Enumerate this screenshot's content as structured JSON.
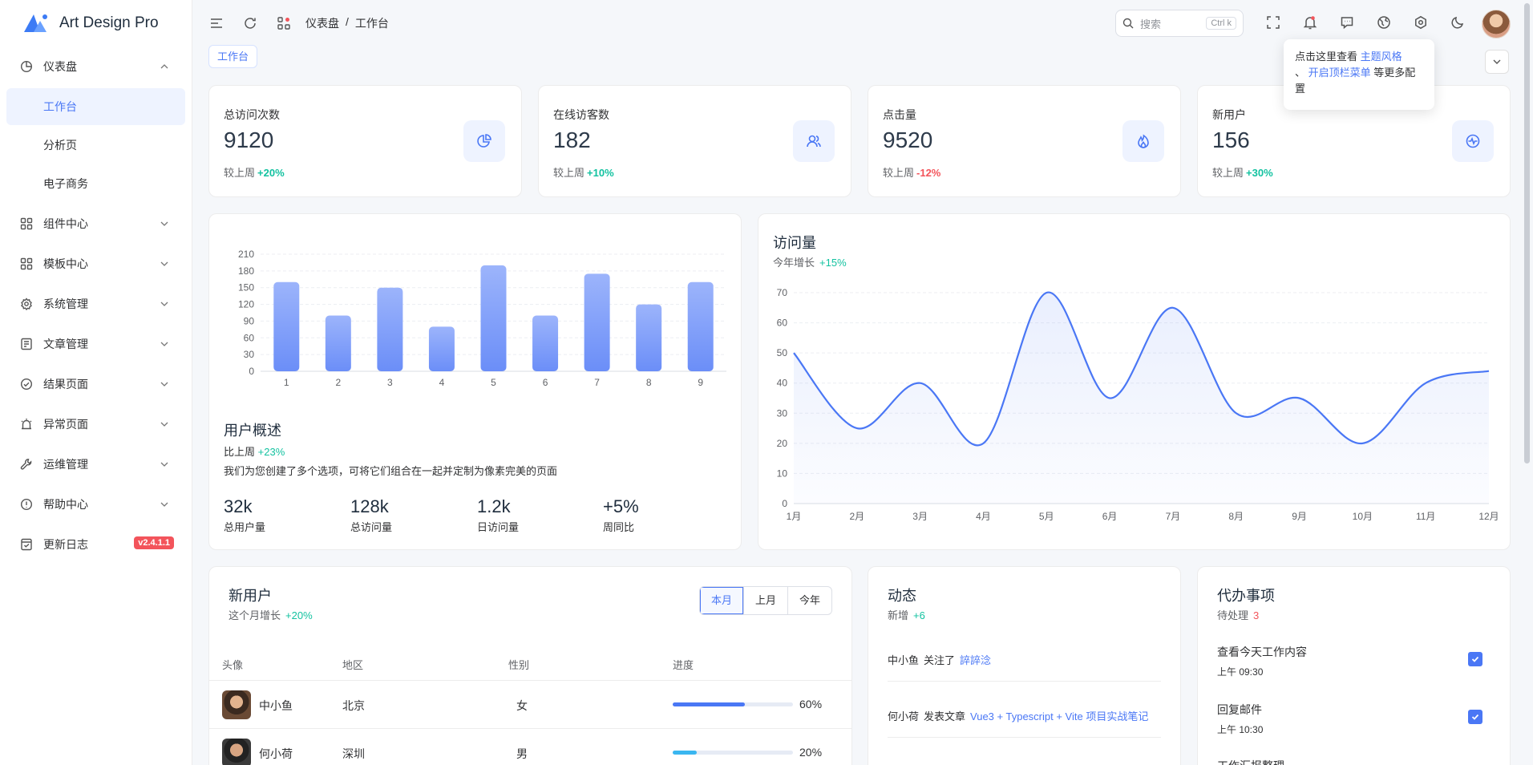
{
  "app": {
    "name": "Art Design Pro"
  },
  "sidebar": {
    "items": [
      {
        "label": "仪表盘",
        "icon": "dashboard-icon",
        "expanded": true,
        "children": [
          {
            "label": "工作台",
            "active": true
          },
          {
            "label": "分析页"
          },
          {
            "label": "电子商务"
          }
        ]
      },
      {
        "label": "组件中心",
        "icon": "components-icon"
      },
      {
        "label": "模板中心",
        "icon": "templates-icon"
      },
      {
        "label": "系统管理",
        "icon": "gear-icon"
      },
      {
        "label": "文章管理",
        "icon": "article-icon"
      },
      {
        "label": "结果页面",
        "icon": "check-circle-icon"
      },
      {
        "label": "异常页面",
        "icon": "alarm-icon"
      },
      {
        "label": "运维管理",
        "icon": "wrench-icon"
      },
      {
        "label": "帮助中心",
        "icon": "info-circle-icon"
      },
      {
        "label": "更新日志",
        "icon": "changelog-icon",
        "badge": "v2.4.1.1"
      }
    ]
  },
  "header": {
    "breadcrumb": [
      "仪表盘",
      "/",
      "工作台"
    ],
    "search_placeholder": "搜索",
    "search_shortcut": "Ctrl k"
  },
  "tabs": {
    "active": "工作台"
  },
  "tooltip": {
    "prefix": "点击这里查看",
    "link1": "主题风格",
    "sep": "、",
    "link2": "开启顶栏菜单",
    "suffix": "等更多配置"
  },
  "stats": [
    {
      "label": "总访问次数",
      "value": "9120",
      "compare": "较上周",
      "delta": "+20%",
      "trend": "up",
      "icon": "pie-chart-icon"
    },
    {
      "label": "在线访客数",
      "value": "182",
      "compare": "较上周",
      "delta": "+10%",
      "trend": "up",
      "icon": "users-icon"
    },
    {
      "label": "点击量",
      "value": "9520",
      "compare": "较上周",
      "delta": "-12%",
      "trend": "down",
      "icon": "fire-icon"
    },
    {
      "label": "新用户",
      "value": "156",
      "compare": "较上周",
      "delta": "+30%",
      "trend": "up",
      "icon": "pulse-icon"
    }
  ],
  "overview": {
    "title": "用户概述",
    "compare": "比上周",
    "delta": "+23%",
    "desc": "我们为您创建了多个选项，可将它们组合在一起并定制为像素完美的页面",
    "kpis": [
      {
        "value": "32k",
        "label": "总用户量"
      },
      {
        "value": "128k",
        "label": "总访问量"
      },
      {
        "value": "1.2k",
        "label": "日访问量"
      },
      {
        "value": "+5%",
        "label": "周同比"
      }
    ]
  },
  "visits": {
    "title": "访问量",
    "sub": "今年增长",
    "delta": "+15%"
  },
  "new_users": {
    "title": "新用户",
    "sub": "这个月增长",
    "delta": "+20%",
    "periods": [
      "本月",
      "上月",
      "今年"
    ],
    "columns": [
      "头像",
      "地区",
      "性别",
      "进度"
    ],
    "rows": [
      {
        "name": "中小鱼",
        "region": "北京",
        "gender": "女",
        "progress": 60,
        "progress_label": "60%",
        "color": "#4a77f5"
      },
      {
        "name": "何小荷",
        "region": "深圳",
        "gender": "男",
        "progress": 20,
        "progress_label": "20%",
        "color": "#3ab6f0"
      }
    ]
  },
  "activity": {
    "title": "动态",
    "sub": "新增",
    "delta": "+6",
    "items": [
      {
        "user": "中小鱼",
        "action": "关注了",
        "target": "誶誶淰"
      },
      {
        "user": "何小荷",
        "action": "发表文章",
        "target": "Vue3 + Typescript + Vite 项目实战笔记"
      }
    ]
  },
  "todos": {
    "title": "代办事项",
    "sub": "待处理",
    "count": "3",
    "items": [
      {
        "title": "查看今天工作内容",
        "time": "上午 09:30",
        "done": true
      },
      {
        "title": "回复邮件",
        "time": "上午 10:30",
        "done": true
      },
      {
        "title": "工作汇报整理",
        "time": "",
        "done": false
      }
    ]
  },
  "chart_data": [
    {
      "type": "bar",
      "categories": [
        "1",
        "2",
        "3",
        "4",
        "5",
        "6",
        "7",
        "8",
        "9"
      ],
      "values": [
        160,
        100,
        150,
        80,
        190,
        100,
        175,
        120,
        160
      ],
      "ylim": [
        0,
        210
      ],
      "yticks": [
        0,
        30,
        60,
        90,
        120,
        150,
        180,
        210
      ],
      "grid": true,
      "color": "#6b8ef8"
    },
    {
      "type": "area",
      "categories": [
        "1月",
        "2月",
        "3月",
        "4月",
        "5月",
        "6月",
        "7月",
        "8月",
        "9月",
        "10月",
        "11月",
        "12月"
      ],
      "values": [
        50,
        25,
        40,
        20,
        70,
        35,
        65,
        30,
        35,
        20,
        40,
        44
      ],
      "ylim": [
        0,
        70
      ],
      "yticks": [
        0,
        10,
        20,
        30,
        40,
        50,
        60,
        70
      ],
      "grid": true,
      "color": "#4a77f5"
    }
  ]
}
